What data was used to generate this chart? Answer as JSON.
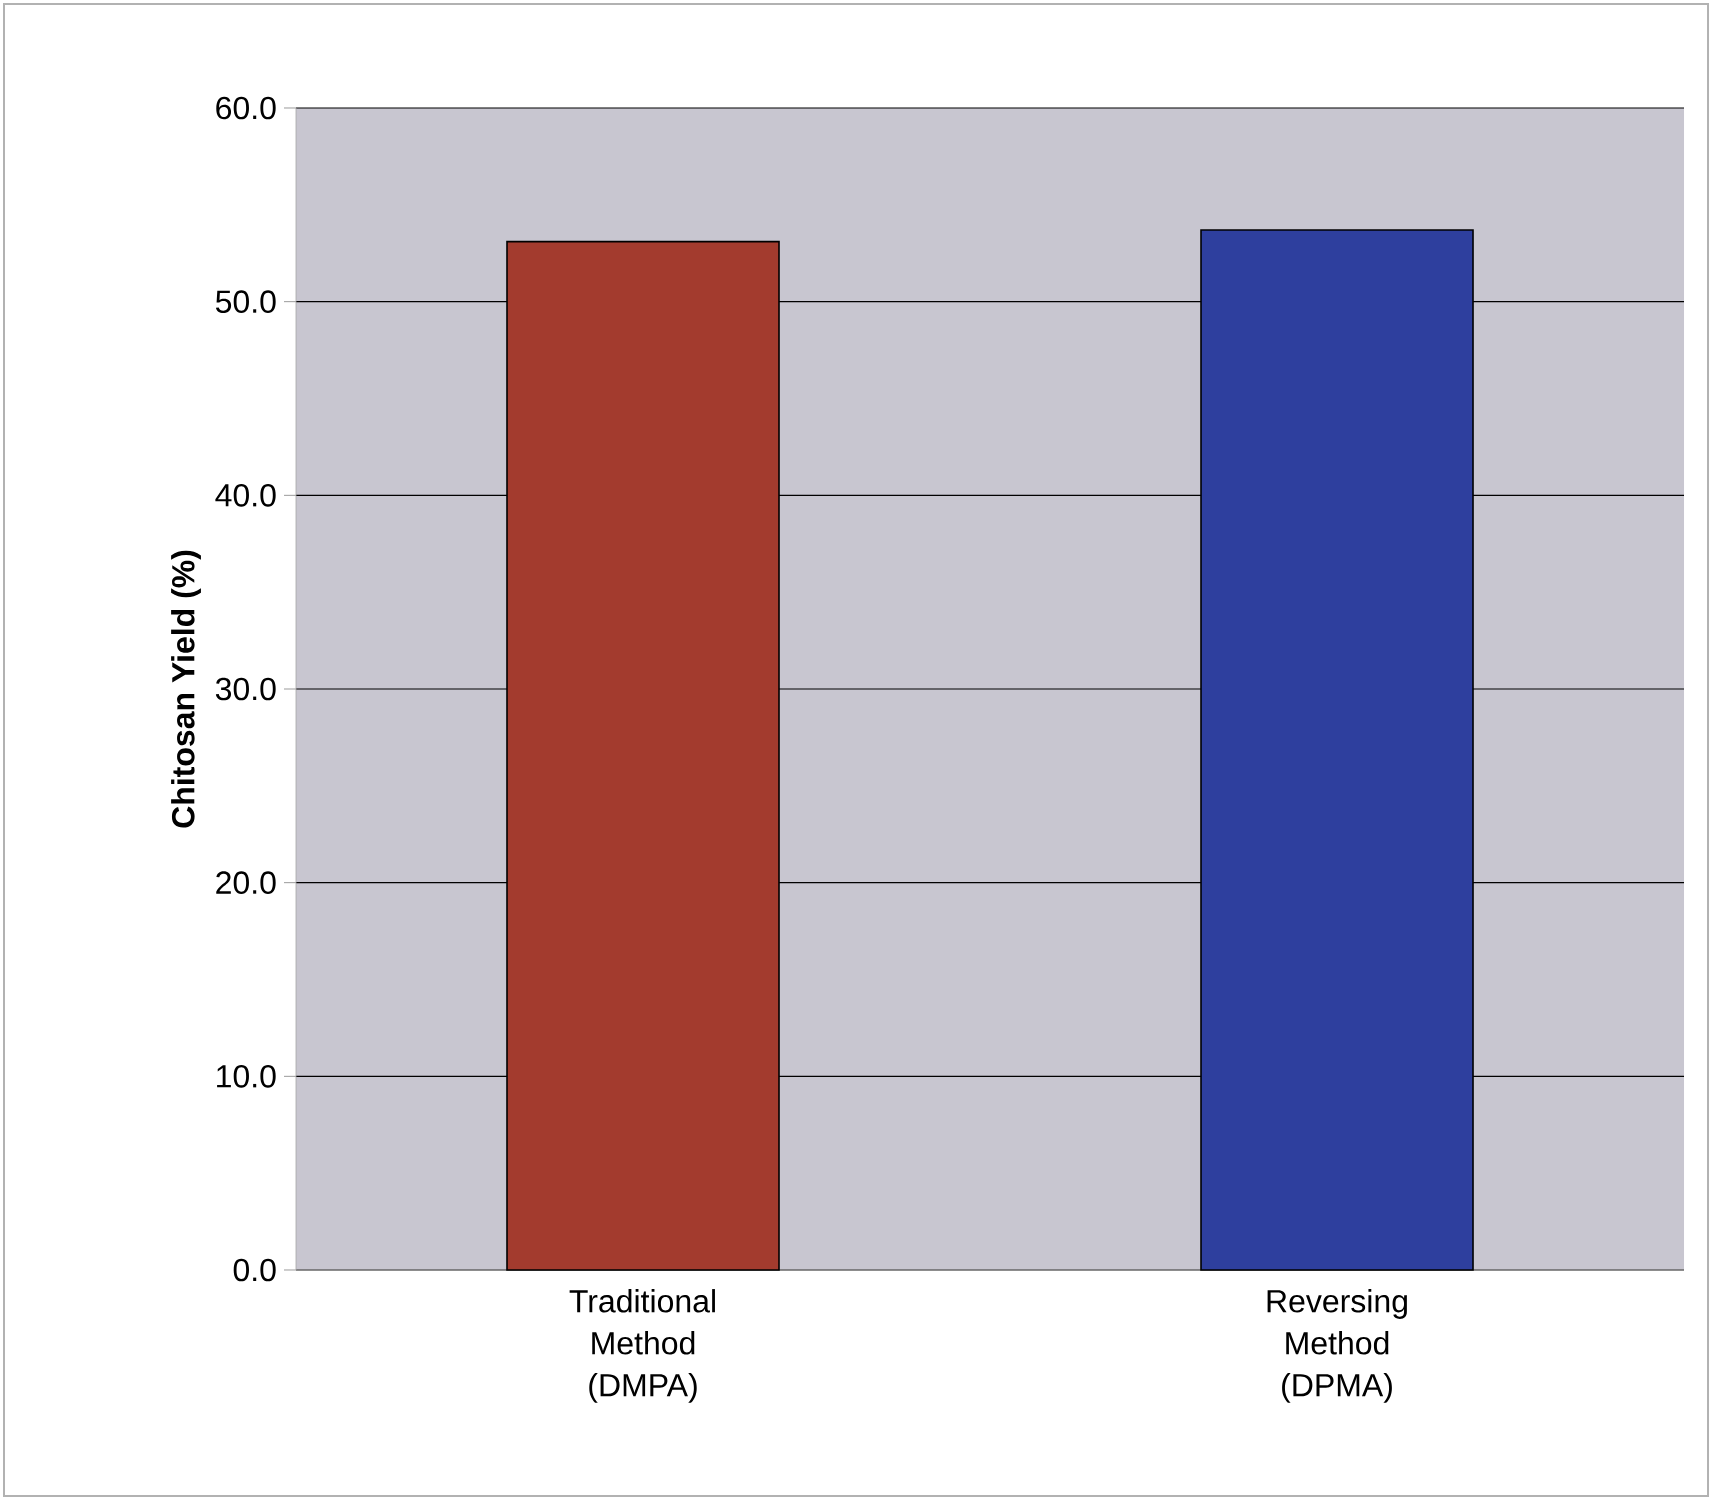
{
  "chart_data": {
    "type": "bar",
    "ylabel": "Chitosan Yield (%)",
    "categories": [
      "Traditional Method (DMPA)",
      "Reversing Method (DPMA)"
    ],
    "values": [
      53.1,
      53.7
    ],
    "colors": [
      "#a33b2e",
      "#2e3f9e"
    ],
    "ylim": [
      0,
      60
    ],
    "yticks": [
      {
        "value": 0,
        "label": "0.0"
      },
      {
        "value": 10,
        "label": "10.0"
      },
      {
        "value": 20,
        "label": "20.0"
      },
      {
        "value": 30,
        "label": "30.0"
      },
      {
        "value": 40,
        "label": "40.0"
      },
      {
        "value": 50,
        "label": "50.0"
      },
      {
        "value": 60,
        "label": "60.0"
      }
    ],
    "grid": "y"
  }
}
